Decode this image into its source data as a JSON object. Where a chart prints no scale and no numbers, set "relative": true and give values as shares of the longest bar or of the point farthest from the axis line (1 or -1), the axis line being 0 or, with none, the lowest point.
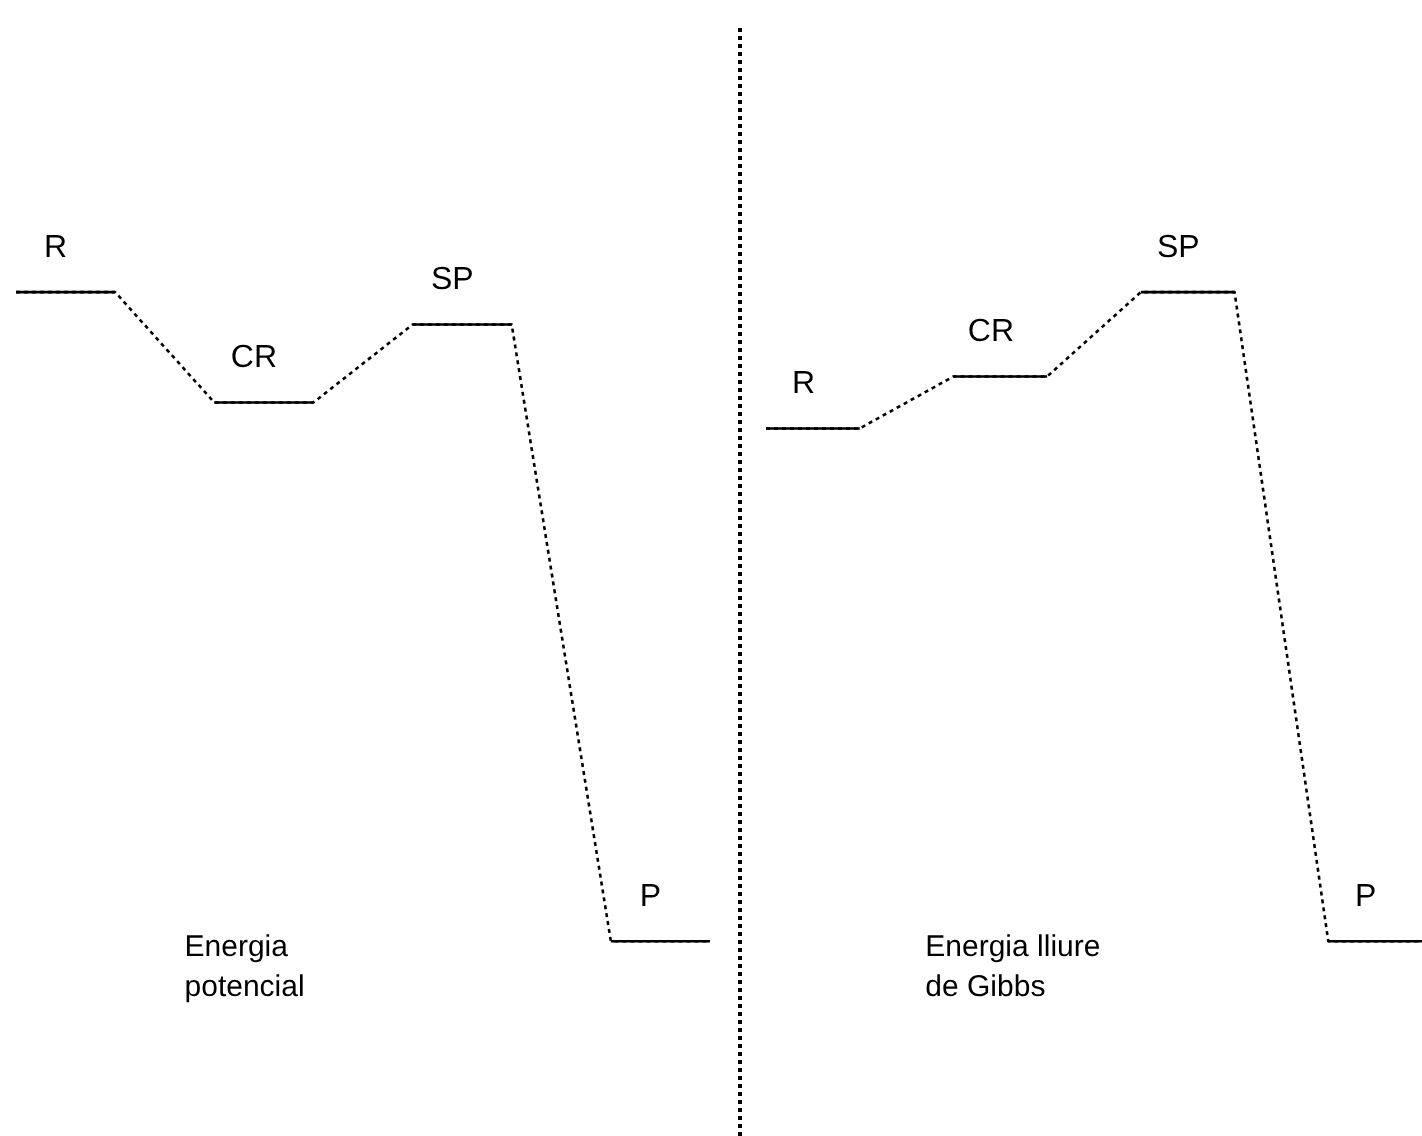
{
  "chart_data": [
    {
      "type": "line",
      "relative": true,
      "tick_labels": false,
      "marker": "none",
      "line_style": "dotted",
      "color": "#000000",
      "categories": [
        null,
        null,
        null,
        null,
        null,
        null,
        null,
        null
      ],
      "values": [
        1,
        1,
        0.83,
        0.83,
        0.95,
        0.95,
        0,
        0
      ],
      "annotations": [
        "R",
        "CR",
        "SP",
        "P",
        "Energia potencial"
      ]
    },
    {
      "type": "line",
      "relative": true,
      "tick_labels": false,
      "marker": "none",
      "line_style": "dotted",
      "color": "#000000",
      "categories": [
        null,
        null,
        null,
        null,
        null,
        null,
        null,
        null
      ],
      "values": [
        0.79,
        0.79,
        0.87,
        0.87,
        1,
        1,
        0,
        0
      ],
      "annotations": [
        "R",
        "CR",
        "SP",
        "P",
        "Energia lliure de Gibbs"
      ]
    }
  ]
}
